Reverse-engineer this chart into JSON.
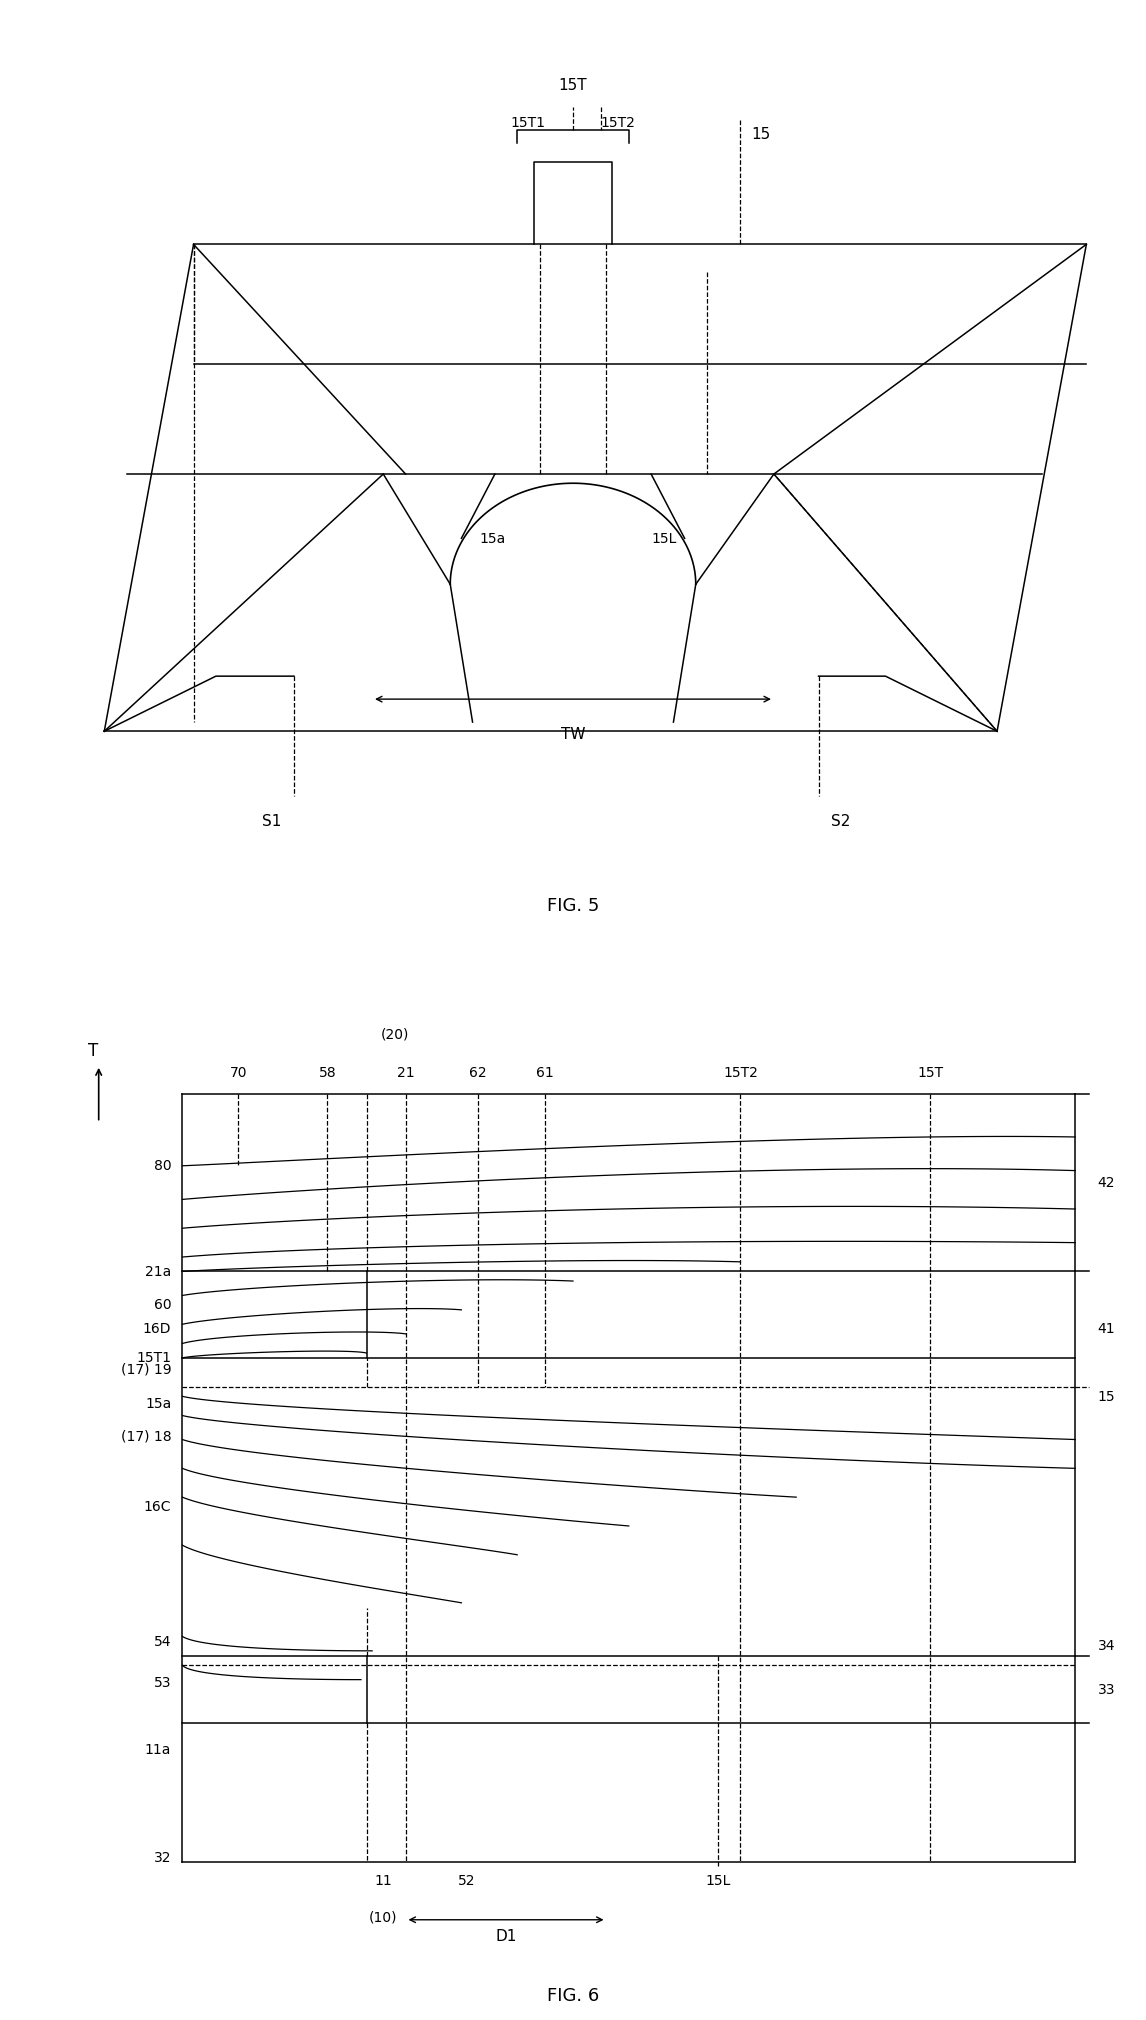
{
  "bg_color": "#ffffff",
  "lc": "#000000",
  "fs": 10,
  "ft": 13,
  "fig5_title": "FIG. 5",
  "fig6_title": "FIG. 6"
}
